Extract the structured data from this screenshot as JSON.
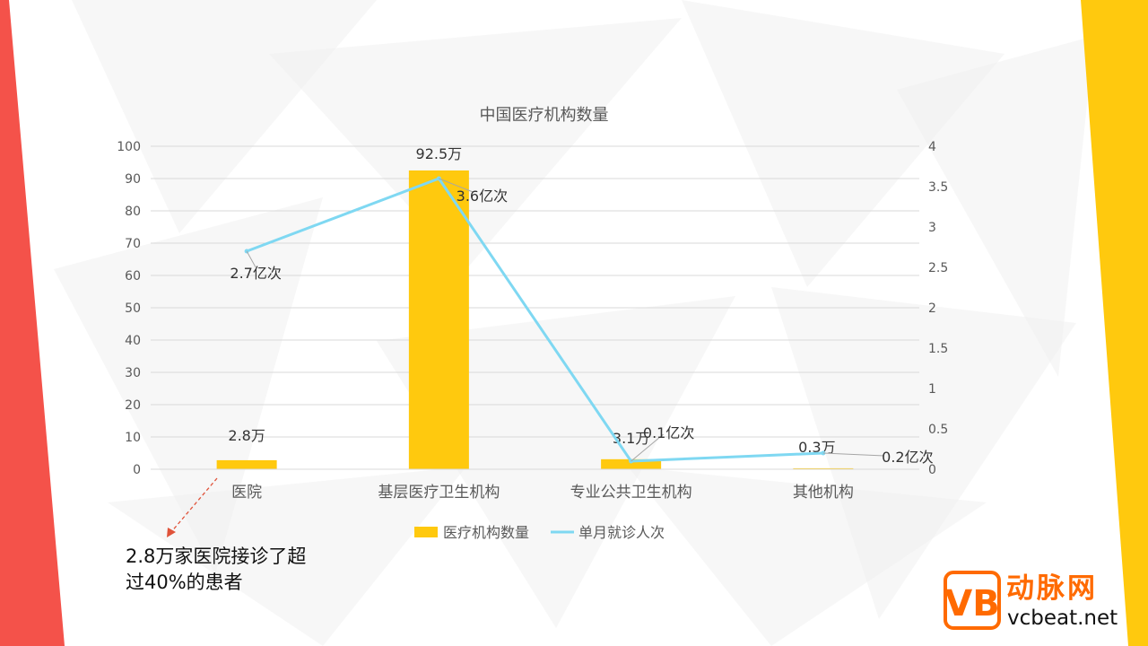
{
  "colors": {
    "bar": "#FFC90E",
    "line": "#7FD8F2",
    "left_stripe": "#F4524A",
    "right_stripe": "#FFC90E",
    "grid": "#D9D9D9",
    "axis_text": "#595959",
    "title": "#595959",
    "annotation_arrow": "#E0533A",
    "logo": "#FF6A00"
  },
  "chart_data": {
    "type": "bar",
    "title": "中国医疗机构数量",
    "categories": [
      "医院",
      "基层医疗卫生机构",
      "专业公共卫生机构",
      "其他机构"
    ],
    "series": [
      {
        "name": "医疗机构数量",
        "type": "bar",
        "axis": "left",
        "values": [
          2.8,
          92.5,
          3.1,
          0.3
        ],
        "labels": [
          "2.8万",
          "92.5万",
          "3.1万",
          "0.3万"
        ]
      },
      {
        "name": "单月就诊人次",
        "type": "line",
        "axis": "right",
        "values": [
          2.7,
          3.6,
          0.1,
          0.2
        ],
        "labels": [
          "2.7亿次",
          "3.6亿次",
          "0.1亿次",
          "0.2亿次"
        ]
      }
    ],
    "y_left": {
      "min": 0,
      "max": 100,
      "ticks": [
        "0",
        "10",
        "20",
        "30",
        "40",
        "50",
        "60",
        "70",
        "80",
        "90",
        "100"
      ]
    },
    "y_right": {
      "min": 0,
      "max": 4,
      "ticks": [
        "0",
        "0.5",
        "1",
        "1.5",
        "2",
        "2.5",
        "3",
        "3.5",
        "4"
      ]
    },
    "grid": true,
    "legend_position": "bottom"
  },
  "annotation": {
    "text_line1": "2.8万家医院接诊了超",
    "text_line2": "过40%的患者"
  },
  "logo": {
    "mark": "VB",
    "name": "动脉网",
    "url": "vcbeat.net"
  }
}
